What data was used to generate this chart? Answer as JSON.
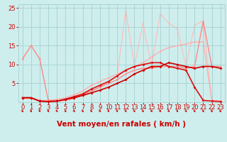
{
  "xlabel": "Vent moyen/en rafales ( km/h )",
  "bg_color": "#ceeeed",
  "grid_color": "#aad4d4",
  "xlim": [
    -0.5,
    23.5
  ],
  "ylim": [
    0,
    26
  ],
  "yticks": [
    5,
    10,
    15,
    20,
    25
  ],
  "xticks": [
    0,
    1,
    2,
    3,
    4,
    5,
    6,
    7,
    8,
    9,
    10,
    11,
    12,
    13,
    14,
    15,
    16,
    17,
    18,
    19,
    20,
    21,
    22,
    23
  ],
  "lines": [
    {
      "x": [
        0,
        1,
        2,
        3,
        4,
        5,
        6,
        7,
        8,
        9,
        10,
        11,
        12,
        13,
        14,
        15,
        16,
        17,
        18,
        19,
        20,
        21,
        22,
        23
      ],
      "y": [
        1.2,
        1.2,
        0.3,
        0.2,
        0.3,
        0.8,
        1.2,
        1.8,
        2.5,
        3.2,
        4.0,
        5.0,
        6.0,
        7.5,
        8.5,
        9.5,
        9.5,
        10.5,
        10.0,
        9.5,
        9.0,
        9.5,
        9.5,
        9.0
      ],
      "color": "#cc0000",
      "lw": 1.2,
      "marker": "D",
      "ms": 2.0,
      "zorder": 5
    },
    {
      "x": [
        0,
        1,
        2,
        3,
        4,
        5,
        6,
        7,
        8,
        9,
        10,
        11,
        12,
        13,
        14,
        15,
        16,
        17,
        18,
        19,
        20,
        21,
        22,
        23
      ],
      "y": [
        1.2,
        1.2,
        0.3,
        0.2,
        0.3,
        0.8,
        1.5,
        2.2,
        3.5,
        4.5,
        5.5,
        7.0,
        8.5,
        9.5,
        10.0,
        10.5,
        10.5,
        9.5,
        9.0,
        8.5,
        4.0,
        0.5,
        0.3,
        0.2
      ],
      "color": "#dd1111",
      "lw": 1.2,
      "marker": "D",
      "ms": 2.0,
      "zorder": 4
    },
    {
      "x": [
        0,
        1,
        2,
        3,
        4,
        5,
        6,
        7,
        8,
        9,
        10,
        11,
        12,
        13,
        14,
        15,
        16,
        17,
        18,
        19,
        20,
        21,
        22,
        23
      ],
      "y": [
        11.5,
        15.0,
        11.5,
        0.5,
        0.3,
        0.5,
        1.0,
        2.0,
        3.0,
        4.0,
        5.0,
        6.0,
        7.5,
        8.5,
        9.0,
        9.0,
        9.5,
        9.5,
        9.5,
        9.0,
        9.5,
        21.5,
        9.5,
        9.5
      ],
      "color": "#ff8888",
      "lw": 1.0,
      "marker": "D",
      "ms": 1.5,
      "zorder": 3
    },
    {
      "x": [
        0,
        1,
        2,
        3,
        4,
        5,
        6,
        7,
        8,
        9,
        10,
        11,
        12,
        13,
        14,
        15,
        16,
        17,
        18,
        19,
        20,
        21,
        22,
        23
      ],
      "y": [
        1.0,
        1.0,
        0.5,
        0.5,
        0.8,
        1.2,
        2.0,
        3.0,
        4.5,
        5.5,
        6.5,
        7.5,
        8.5,
        9.5,
        10.5,
        12.0,
        13.5,
        14.5,
        15.0,
        15.5,
        16.0,
        16.0,
        0.5,
        0.3
      ],
      "color": "#ffaaaa",
      "lw": 0.9,
      "marker": "D",
      "ms": 1.5,
      "zorder": 2
    },
    {
      "comment": "very light salmon - spiky line with big peaks at 12(24.5),14(21),16(23.5),18(19.5),20(20.5),21(21.5)",
      "x": [
        0,
        1,
        2,
        3,
        4,
        5,
        6,
        7,
        8,
        9,
        10,
        11,
        12,
        13,
        14,
        15,
        16,
        17,
        18,
        19,
        20,
        21,
        22,
        23
      ],
      "y": [
        1.0,
        1.0,
        0.5,
        0.3,
        0.3,
        0.5,
        1.0,
        2.0,
        3.0,
        4.0,
        5.5,
        7.0,
        24.5,
        9.5,
        21.0,
        9.5,
        23.5,
        21.0,
        19.5,
        9.5,
        20.5,
        21.5,
        0.5,
        0.3
      ],
      "color": "#ffbbbb",
      "lw": 0.8,
      "marker": "D",
      "ms": 1.5,
      "zorder": 1
    }
  ],
  "xlabel_color": "#cc0000",
  "xlabel_fontsize": 7.5,
  "tick_color": "#cc0000",
  "tick_fontsize": 6.0
}
